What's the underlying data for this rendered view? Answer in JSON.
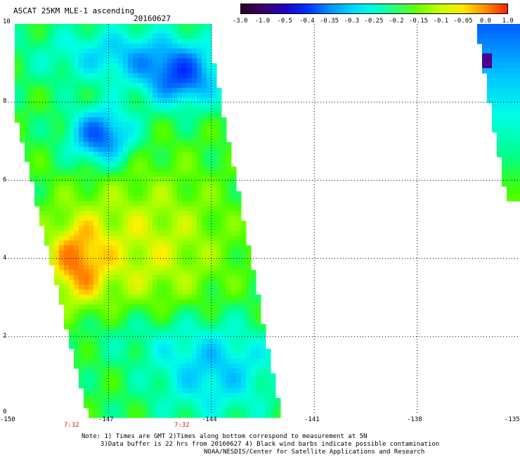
{
  "header": {
    "title": "ASCAT 25KM MLE-1 ascending",
    "date": "20160627"
  },
  "colorbar": {
    "labels": [
      "-3.0",
      "-1.0",
      "-0.5",
      "-0.4",
      "-0.35",
      "-0.3",
      "-0.25",
      "-0.2",
      "-0.15",
      "-0.1",
      "-0.05",
      "0.0",
      "1.0"
    ],
    "colors": [
      "#2a0028",
      "#3a006a",
      "#1f00c8",
      "#0032ff",
      "#0090ff",
      "#00d8ff",
      "#00ffd8",
      "#30ff70",
      "#70ff00",
      "#c8ff00",
      "#ffe800",
      "#ff9000",
      "#ff2000"
    ]
  },
  "axes": {
    "y_ticks": [
      "10",
      "8",
      "6",
      "4",
      "2",
      "0"
    ],
    "x_ticks": [
      "-150",
      "-147",
      "-144",
      "-141",
      "-138",
      "-135"
    ],
    "xlim": [
      -150,
      -135
    ],
    "ylim": [
      0,
      10
    ]
  },
  "pass_times": [
    {
      "label": "7:32",
      "lon": -147.8
    },
    {
      "label": "7:32",
      "lon": -144.8
    }
  ],
  "notes": {
    "line1": "Note: 1) Times are GMT 2)Times along bottom correspond to measurement at 5N",
    "line2": "3)Data buffer is 22 hrs from 20160627 4) Black wind barbs indicate possible contamination",
    "line3": "NOAA/NESDIS/Center for Satellite Applications and Research"
  },
  "colors": {
    "time_label": "#cc2200",
    "grid": "#000000"
  }
}
